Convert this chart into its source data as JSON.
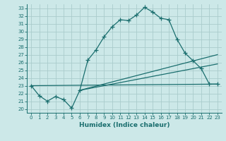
{
  "xlabel": "Humidex (Indice chaleur)",
  "bg_color": "#cce8e8",
  "grid_color": "#aacccc",
  "line_color": "#1a6e6e",
  "xlim": [
    -0.5,
    23.5
  ],
  "ylim": [
    19.5,
    33.5
  ],
  "xticks": [
    0,
    1,
    2,
    3,
    4,
    5,
    6,
    7,
    8,
    9,
    10,
    11,
    12,
    13,
    14,
    15,
    16,
    17,
    18,
    19,
    20,
    21,
    22,
    23
  ],
  "yticks": [
    20,
    21,
    22,
    23,
    24,
    25,
    26,
    27,
    28,
    29,
    30,
    31,
    32,
    33
  ],
  "curve1_x": [
    0,
    1,
    2,
    3,
    4,
    5,
    6,
    7,
    8,
    9,
    10,
    11,
    12,
    13,
    14,
    15,
    16,
    17,
    18,
    19,
    20,
    21,
    22,
    23
  ],
  "curve1_y": [
    23.0,
    21.7,
    21.0,
    21.6,
    21.2,
    20.1,
    22.4,
    26.3,
    27.6,
    29.3,
    30.6,
    31.5,
    31.4,
    32.1,
    33.1,
    32.5,
    31.7,
    31.5,
    29.0,
    27.2,
    26.2,
    25.2,
    23.2,
    23.2
  ],
  "line1_x": [
    6,
    23
  ],
  "line1_y": [
    22.4,
    27.0
  ],
  "line2_x": [
    6,
    23
  ],
  "line2_y": [
    22.4,
    25.8
  ],
  "line3_x": [
    0,
    23
  ],
  "line3_y": [
    23.0,
    23.2
  ]
}
